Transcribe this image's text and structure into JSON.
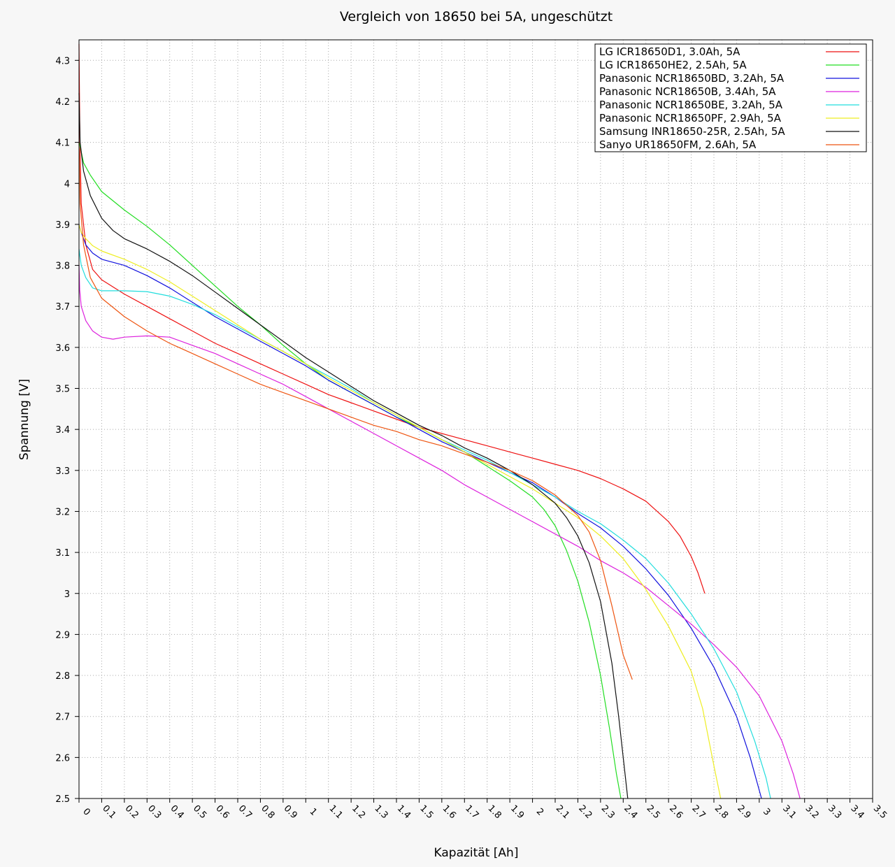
{
  "chart_data": {
    "type": "line",
    "title": "Vergleich von 18650 bei 5A, ungeschützt",
    "xlabel": "Kapazität [Ah]",
    "ylabel": "Spannung [V]",
    "xlim": [
      0,
      3.5
    ],
    "ylim": [
      2.5,
      4.35
    ],
    "grid": true,
    "legend_position": "top-right",
    "x_ticks": [
      "0",
      "0.1",
      "0.2",
      "0.3",
      "0.4",
      "0.5",
      "0.6",
      "0.7",
      "0.8",
      "0.9",
      "1",
      "1.1",
      "1.2",
      "1.3",
      "1.4",
      "1.5",
      "1.6",
      "1.7",
      "1.8",
      "1.9",
      "2",
      "2.1",
      "2.2",
      "2.3",
      "2.4",
      "2.5",
      "2.6",
      "2.7",
      "2.8",
      "2.9",
      "3",
      "3.1",
      "3.2",
      "3.3",
      "3.4",
      "3.5"
    ],
    "y_ticks": [
      "2.5",
      "2.6",
      "2.7",
      "2.8",
      "2.9",
      "3",
      "3.1",
      "3.2",
      "3.3",
      "3.4",
      "3.5",
      "3.6",
      "3.7",
      "3.8",
      "3.9",
      "4",
      "4.1",
      "4.2",
      "4.3"
    ],
    "series": [
      {
        "name": "LG ICR18650D1, 3.0Ah, 5A",
        "color": "#ee1111",
        "points": [
          [
            0,
            4.34
          ],
          [
            0.004,
            4.1
          ],
          [
            0.01,
            3.95
          ],
          [
            0.03,
            3.85
          ],
          [
            0.06,
            3.79
          ],
          [
            0.1,
            3.765
          ],
          [
            0.2,
            3.73
          ],
          [
            0.3,
            3.7
          ],
          [
            0.4,
            3.67
          ],
          [
            0.5,
            3.64
          ],
          [
            0.6,
            3.61
          ],
          [
            0.7,
            3.585
          ],
          [
            0.8,
            3.56
          ],
          [
            0.9,
            3.535
          ],
          [
            1,
            3.51
          ],
          [
            1.1,
            3.485
          ],
          [
            1.2,
            3.465
          ],
          [
            1.3,
            3.445
          ],
          [
            1.4,
            3.425
          ],
          [
            1.5,
            3.405
          ],
          [
            1.6,
            3.39
          ],
          [
            1.7,
            3.375
          ],
          [
            1.8,
            3.36
          ],
          [
            1.9,
            3.345
          ],
          [
            2,
            3.33
          ],
          [
            2.1,
            3.315
          ],
          [
            2.2,
            3.3
          ],
          [
            2.3,
            3.28
          ],
          [
            2.4,
            3.255
          ],
          [
            2.5,
            3.225
          ],
          [
            2.55,
            3.2
          ],
          [
            2.6,
            3.175
          ],
          [
            2.65,
            3.14
          ],
          [
            2.7,
            3.09
          ],
          [
            2.73,
            3.05
          ],
          [
            2.76,
            3.0
          ]
        ]
      },
      {
        "name": "LG ICR18650HE2, 2.5Ah, 5A",
        "color": "#22dd22",
        "points": [
          [
            0,
            4.1
          ],
          [
            0.005,
            4.09
          ],
          [
            0.02,
            4.05
          ],
          [
            0.05,
            4.02
          ],
          [
            0.1,
            3.98
          ],
          [
            0.2,
            3.935
          ],
          [
            0.3,
            3.895
          ],
          [
            0.4,
            3.85
          ],
          [
            0.5,
            3.8
          ],
          [
            0.6,
            3.75
          ],
          [
            0.7,
            3.7
          ],
          [
            0.8,
            3.655
          ],
          [
            0.9,
            3.605
          ],
          [
            1,
            3.56
          ],
          [
            1.1,
            3.52
          ],
          [
            1.2,
            3.49
          ],
          [
            1.3,
            3.46
          ],
          [
            1.4,
            3.43
          ],
          [
            1.5,
            3.405
          ],
          [
            1.6,
            3.375
          ],
          [
            1.7,
            3.345
          ],
          [
            1.8,
            3.31
          ],
          [
            1.9,
            3.275
          ],
          [
            2,
            3.235
          ],
          [
            2.05,
            3.205
          ],
          [
            2.1,
            3.165
          ],
          [
            2.15,
            3.105
          ],
          [
            2.2,
            3.03
          ],
          [
            2.25,
            2.93
          ],
          [
            2.3,
            2.8
          ],
          [
            2.34,
            2.67
          ],
          [
            2.37,
            2.56
          ],
          [
            2.39,
            2.5
          ]
        ]
      },
      {
        "name": "Panasonic NCR18650BD, 3.2Ah, 5A",
        "color": "#1111dd",
        "points": [
          [
            0,
            3.9
          ],
          [
            0.01,
            3.88
          ],
          [
            0.03,
            3.85
          ],
          [
            0.06,
            3.83
          ],
          [
            0.1,
            3.815
          ],
          [
            0.2,
            3.8
          ],
          [
            0.3,
            3.775
          ],
          [
            0.4,
            3.745
          ],
          [
            0.5,
            3.71
          ],
          [
            0.6,
            3.675
          ],
          [
            0.7,
            3.645
          ],
          [
            0.8,
            3.615
          ],
          [
            0.9,
            3.585
          ],
          [
            1,
            3.555
          ],
          [
            1.1,
            3.52
          ],
          [
            1.2,
            3.49
          ],
          [
            1.3,
            3.46
          ],
          [
            1.4,
            3.43
          ],
          [
            1.5,
            3.4
          ],
          [
            1.6,
            3.37
          ],
          [
            1.7,
            3.345
          ],
          [
            1.8,
            3.32
          ],
          [
            1.9,
            3.295
          ],
          [
            2,
            3.27
          ],
          [
            2.1,
            3.235
          ],
          [
            2.2,
            3.195
          ],
          [
            2.3,
            3.16
          ],
          [
            2.4,
            3.115
          ],
          [
            2.5,
            3.06
          ],
          [
            2.6,
            2.995
          ],
          [
            2.7,
            2.915
          ],
          [
            2.8,
            2.82
          ],
          [
            2.9,
            2.7
          ],
          [
            2.96,
            2.6
          ],
          [
            3.01,
            2.5
          ]
        ]
      },
      {
        "name": "Panasonic NCR18650B, 3.4Ah, 5A",
        "color": "#dd22dd",
        "points": [
          [
            0,
            3.8
          ],
          [
            0.003,
            3.74
          ],
          [
            0.01,
            3.7
          ],
          [
            0.03,
            3.665
          ],
          [
            0.06,
            3.64
          ],
          [
            0.1,
            3.625
          ],
          [
            0.15,
            3.62
          ],
          [
            0.2,
            3.625
          ],
          [
            0.3,
            3.628
          ],
          [
            0.4,
            3.625
          ],
          [
            0.5,
            3.605
          ],
          [
            0.6,
            3.585
          ],
          [
            0.7,
            3.56
          ],
          [
            0.8,
            3.535
          ],
          [
            0.9,
            3.51
          ],
          [
            1,
            3.48
          ],
          [
            1.1,
            3.45
          ],
          [
            1.2,
            3.42
          ],
          [
            1.3,
            3.39
          ],
          [
            1.4,
            3.36
          ],
          [
            1.5,
            3.33
          ],
          [
            1.6,
            3.3
          ],
          [
            1.7,
            3.265
          ],
          [
            1.8,
            3.235
          ],
          [
            1.9,
            3.205
          ],
          [
            2,
            3.175
          ],
          [
            2.1,
            3.145
          ],
          [
            2.2,
            3.115
          ],
          [
            2.3,
            3.08
          ],
          [
            2.4,
            3.05
          ],
          [
            2.5,
            3.015
          ],
          [
            2.6,
            2.97
          ],
          [
            2.7,
            2.925
          ],
          [
            2.8,
            2.875
          ],
          [
            2.9,
            2.82
          ],
          [
            3,
            2.75
          ],
          [
            3.1,
            2.64
          ],
          [
            3.15,
            2.56
          ],
          [
            3.18,
            2.5
          ]
        ]
      },
      {
        "name": "Panasonic NCR18650BE, 3.2Ah, 5A",
        "color": "#22dddd",
        "points": [
          [
            0,
            3.84
          ],
          [
            0.01,
            3.8
          ],
          [
            0.03,
            3.77
          ],
          [
            0.06,
            3.745
          ],
          [
            0.1,
            3.738
          ],
          [
            0.2,
            3.738
          ],
          [
            0.3,
            3.736
          ],
          [
            0.4,
            3.725
          ],
          [
            0.5,
            3.705
          ],
          [
            0.6,
            3.68
          ],
          [
            0.7,
            3.65
          ],
          [
            0.8,
            3.62
          ],
          [
            0.9,
            3.59
          ],
          [
            1,
            3.56
          ],
          [
            1.1,
            3.53
          ],
          [
            1.2,
            3.5
          ],
          [
            1.3,
            3.465
          ],
          [
            1.4,
            3.435
          ],
          [
            1.5,
            3.405
          ],
          [
            1.6,
            3.375
          ],
          [
            1.7,
            3.35
          ],
          [
            1.8,
            3.325
          ],
          [
            1.9,
            3.295
          ],
          [
            2,
            3.265
          ],
          [
            2.1,
            3.235
          ],
          [
            2.2,
            3.2
          ],
          [
            2.3,
            3.17
          ],
          [
            2.4,
            3.13
          ],
          [
            2.5,
            3.085
          ],
          [
            2.6,
            3.025
          ],
          [
            2.7,
            2.95
          ],
          [
            2.8,
            2.865
          ],
          [
            2.9,
            2.76
          ],
          [
            2.98,
            2.64
          ],
          [
            3.03,
            2.55
          ],
          [
            3.05,
            2.5
          ]
        ]
      },
      {
        "name": "Panasonic NCR18650PF, 2.9Ah, 5A",
        "color": "#eeee22",
        "points": [
          [
            0,
            3.9
          ],
          [
            0.01,
            3.88
          ],
          [
            0.03,
            3.865
          ],
          [
            0.06,
            3.848
          ],
          [
            0.1,
            3.835
          ],
          [
            0.2,
            3.815
          ],
          [
            0.3,
            3.79
          ],
          [
            0.4,
            3.76
          ],
          [
            0.5,
            3.725
          ],
          [
            0.6,
            3.69
          ],
          [
            0.7,
            3.655
          ],
          [
            0.8,
            3.62
          ],
          [
            0.9,
            3.59
          ],
          [
            1,
            3.56
          ],
          [
            1.1,
            3.525
          ],
          [
            1.2,
            3.495
          ],
          [
            1.3,
            3.465
          ],
          [
            1.4,
            3.435
          ],
          [
            1.5,
            3.405
          ],
          [
            1.6,
            3.375
          ],
          [
            1.7,
            3.345
          ],
          [
            1.8,
            3.315
          ],
          [
            1.9,
            3.285
          ],
          [
            2,
            3.255
          ],
          [
            2.1,
            3.22
          ],
          [
            2.2,
            3.185
          ],
          [
            2.3,
            3.14
          ],
          [
            2.4,
            3.085
          ],
          [
            2.5,
            3.01
          ],
          [
            2.6,
            2.92
          ],
          [
            2.7,
            2.81
          ],
          [
            2.75,
            2.72
          ],
          [
            2.8,
            2.58
          ],
          [
            2.83,
            2.5
          ]
        ]
      },
      {
        "name": "Samsung INR18650-25R, 2.5Ah, 5A",
        "color": "#111111",
        "points": [
          [
            0,
            4.22
          ],
          [
            0.005,
            4.1
          ],
          [
            0.02,
            4.03
          ],
          [
            0.05,
            3.97
          ],
          [
            0.1,
            3.915
          ],
          [
            0.15,
            3.885
          ],
          [
            0.2,
            3.865
          ],
          [
            0.3,
            3.84
          ],
          [
            0.4,
            3.81
          ],
          [
            0.5,
            3.775
          ],
          [
            0.6,
            3.735
          ],
          [
            0.7,
            3.695
          ],
          [
            0.8,
            3.655
          ],
          [
            0.9,
            3.615
          ],
          [
            1,
            3.575
          ],
          [
            1.1,
            3.54
          ],
          [
            1.2,
            3.505
          ],
          [
            1.3,
            3.47
          ],
          [
            1.4,
            3.44
          ],
          [
            1.5,
            3.41
          ],
          [
            1.6,
            3.385
          ],
          [
            1.7,
            3.355
          ],
          [
            1.8,
            3.33
          ],
          [
            1.9,
            3.3
          ],
          [
            2,
            3.265
          ],
          [
            2.1,
            3.22
          ],
          [
            2.15,
            3.185
          ],
          [
            2.2,
            3.14
          ],
          [
            2.25,
            3.075
          ],
          [
            2.3,
            2.98
          ],
          [
            2.35,
            2.83
          ],
          [
            2.38,
            2.7
          ],
          [
            2.4,
            2.6
          ],
          [
            2.42,
            2.5
          ]
        ]
      },
      {
        "name": "Sanyo UR18650FM, 2.6Ah, 5A",
        "color": "#ee5511",
        "points": [
          [
            0,
            4.1
          ],
          [
            0.005,
            3.95
          ],
          [
            0.02,
            3.85
          ],
          [
            0.05,
            3.77
          ],
          [
            0.1,
            3.72
          ],
          [
            0.2,
            3.675
          ],
          [
            0.3,
            3.64
          ],
          [
            0.4,
            3.61
          ],
          [
            0.5,
            3.585
          ],
          [
            0.6,
            3.56
          ],
          [
            0.7,
            3.535
          ],
          [
            0.8,
            3.51
          ],
          [
            0.9,
            3.49
          ],
          [
            1,
            3.47
          ],
          [
            1.1,
            3.45
          ],
          [
            1.2,
            3.43
          ],
          [
            1.3,
            3.41
          ],
          [
            1.4,
            3.395
          ],
          [
            1.5,
            3.375
          ],
          [
            1.6,
            3.36
          ],
          [
            1.7,
            3.34
          ],
          [
            1.8,
            3.32
          ],
          [
            1.9,
            3.3
          ],
          [
            2,
            3.275
          ],
          [
            2.1,
            3.24
          ],
          [
            2.2,
            3.19
          ],
          [
            2.25,
            3.15
          ],
          [
            2.3,
            3.08
          ],
          [
            2.35,
            2.97
          ],
          [
            2.4,
            2.85
          ],
          [
            2.44,
            2.79
          ]
        ]
      }
    ]
  }
}
